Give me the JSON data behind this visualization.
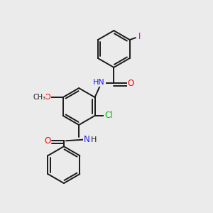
{
  "background_color": "#ebebeb",
  "bond_color": "#1a1a1a",
  "atom_colors": {
    "N": "#2020ff",
    "O": "#ff0000",
    "Cl": "#00bb00",
    "I": "#cc00cc",
    "C": "#1a1a1a",
    "H": "#1a1a1a"
  },
  "figsize": [
    3.0,
    3.0
  ],
  "dpi": 100
}
